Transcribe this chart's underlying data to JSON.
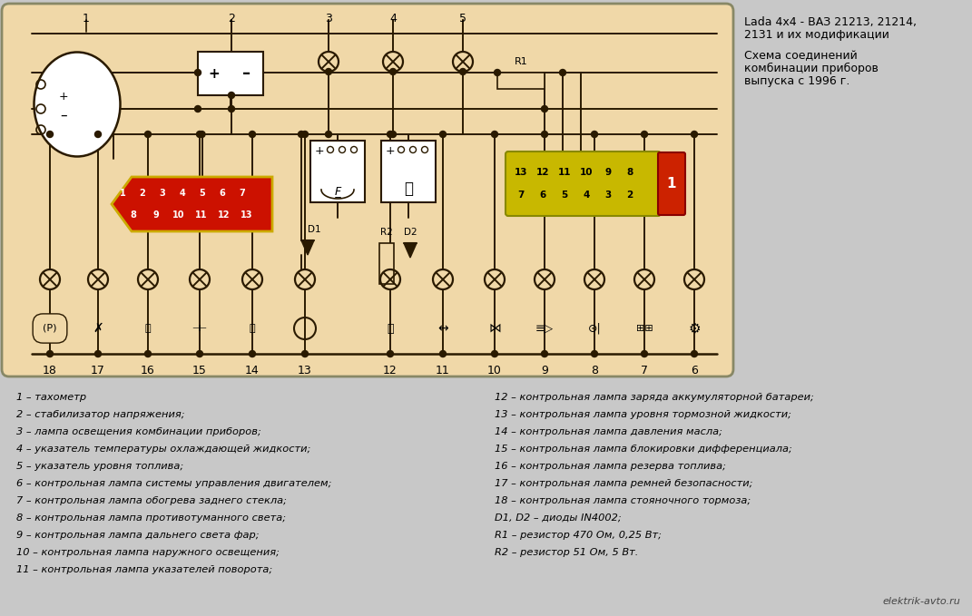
{
  "bg_color": "#f0d8a8",
  "outer_bg": "#c8c8c8",
  "diagram_bg": "#f0d8a8",
  "title_right": [
    "Lada 4x4 - ВАЗ 21213, 21214,",
    "2131 и их модификации",
    "",
    "Схема соединений",
    "комбинации приборов",
    "выпуска с 1996 г."
  ],
  "watermark": "elektrik-avto.ru",
  "legend_left": [
    "1 – тахометр",
    "2 – стабилизатор напряжения;",
    "3 – лампа освещения комбинации приборов;",
    "4 – указатель температуры охлаждающей жидкости;",
    "5 – указатель уровня топлива;",
    "6 – контрольная лампа системы управления двигателем;",
    "7 – контрольная лампа обогрева заднего стекла;",
    "8 – контрольная лампа противотуманного света;",
    "9 – контрольная лампа дальнего света фар;",
    "10 – контрольная лампа наружного освещения;",
    "11 – контрольная лампа указателей поворота;"
  ],
  "legend_right": [
    "12 – контрольная лампа заряда аккумуляторной батареи;",
    "13 – контрольная лампа уровня тормозной жидкости;",
    "14 – контрольная лампа давления масла;",
    "15 – контрольная лампа блокировки дифференциала;",
    "16 – контрольная лампа резерва топлива;",
    "17 – контрольная лампа ремней безопасности;",
    "18 – контрольная лампа стояночного тормоза;",
    "D1, D2 – диоды IN4002;",
    "R1 – резистор 470 Ом, 0,25 Вт;",
    "R2 – резистор 51 Ом, 5 Вт."
  ],
  "conn_red_top": [
    "1",
    "2",
    "3",
    "4",
    "5",
    "6",
    "7"
  ],
  "conn_red_bot": [
    "8",
    "9",
    "10",
    "11",
    "12",
    "13"
  ],
  "conn_yel_top": [
    "13",
    "12",
    "11",
    "10",
    "9",
    "8"
  ],
  "conn_yel_bot": [
    "7",
    "6",
    "5",
    "4",
    "3",
    "2"
  ],
  "bottom_nums": [
    [
      55,
      "18"
    ],
    [
      108,
      "17"
    ],
    [
      163,
      "16"
    ],
    [
      220,
      "15"
    ],
    [
      278,
      "14"
    ],
    [
      336,
      "13"
    ],
    [
      430,
      "12"
    ],
    [
      488,
      "11"
    ],
    [
      545,
      "10"
    ],
    [
      600,
      "9"
    ],
    [
      655,
      "8"
    ],
    [
      710,
      "7"
    ],
    [
      765,
      "6"
    ]
  ]
}
